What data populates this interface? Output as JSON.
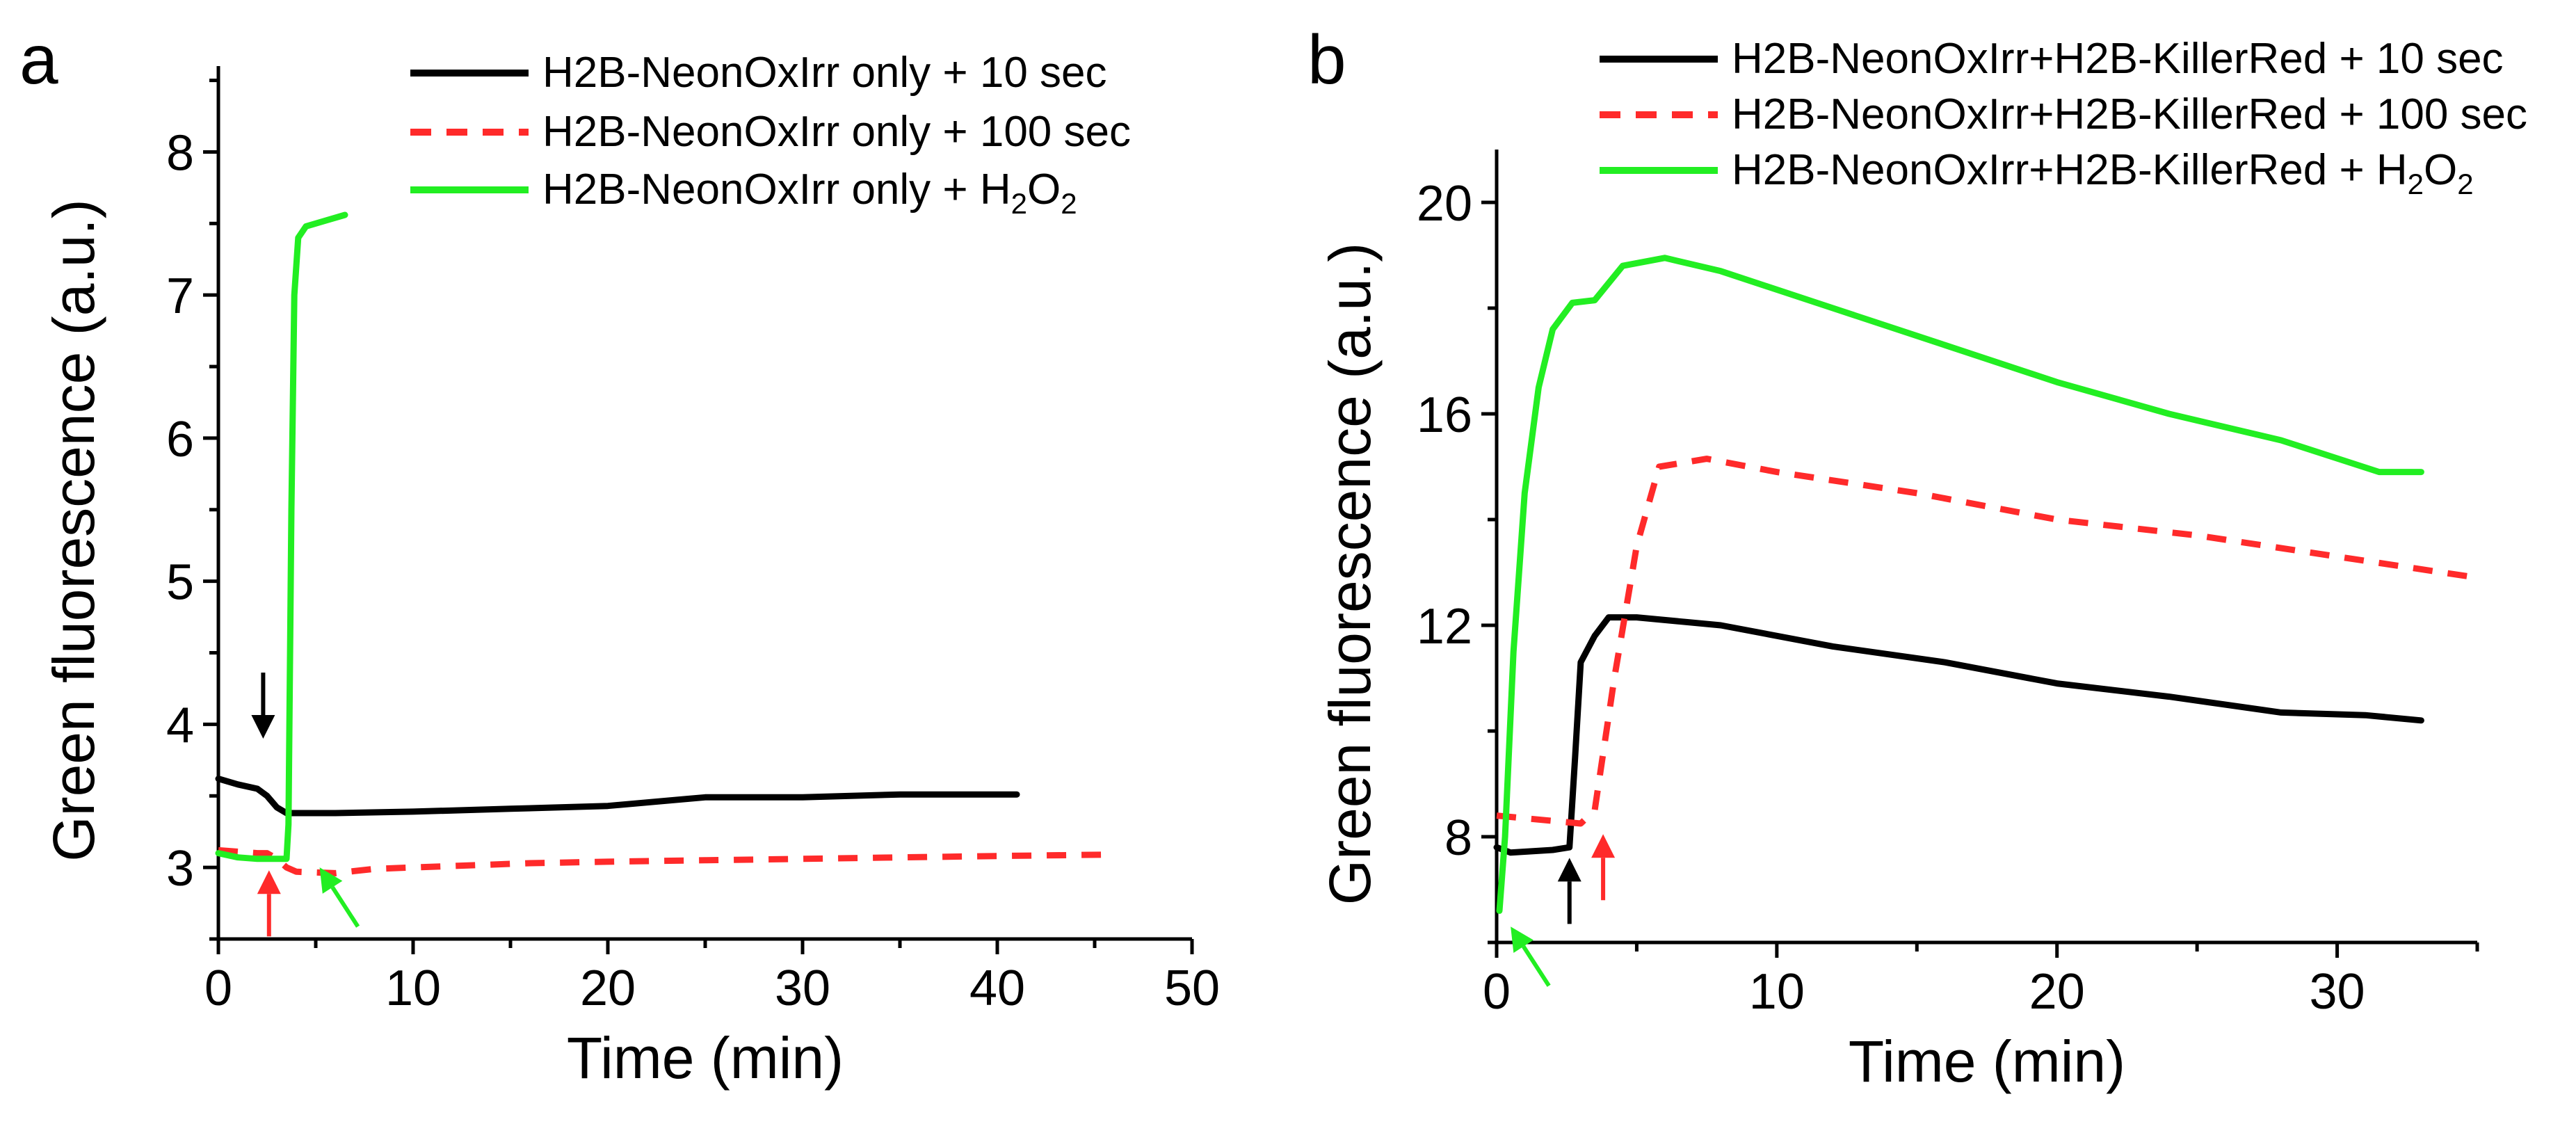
{
  "chart_data": [
    {
      "panel": "a",
      "type": "line",
      "xlabel": "Time (min)",
      "ylabel": "Green fluorescence (a.u.)",
      "xlim": [
        0,
        50
      ],
      "ylim": [
        2.5,
        8.6
      ],
      "xticks": [
        0,
        10,
        20,
        30,
        40,
        50
      ],
      "yticks": [
        3,
        4,
        5,
        6,
        7,
        8
      ],
      "legend_position": "top-right",
      "series": [
        {
          "name": "H2B-NeonOxIrr only + 10 sec",
          "color": "#000000",
          "dash": "solid",
          "points": [
            [
              0,
              3.62
            ],
            [
              1,
              3.58
            ],
            [
              2,
              3.55
            ],
            [
              2.5,
              3.5
            ],
            [
              3,
              3.42
            ],
            [
              3.5,
              3.38
            ],
            [
              4,
              3.38
            ],
            [
              6,
              3.38
            ],
            [
              10,
              3.39
            ],
            [
              15,
              3.41
            ],
            [
              20,
              3.43
            ],
            [
              25,
              3.49
            ],
            [
              30,
              3.49
            ],
            [
              35,
              3.51
            ],
            [
              41,
              3.51
            ]
          ]
        },
        {
          "name": "H2B-NeonOxIrr only + 100 sec",
          "color": "#ff2a2a",
          "dash": "dashed",
          "points": [
            [
              0,
              3.12
            ],
            [
              2,
              3.1
            ],
            [
              2.5,
              3.1
            ],
            [
              3,
              3.06
            ],
            [
              3.5,
              3.0
            ],
            [
              4,
              2.97
            ],
            [
              6,
              2.96
            ],
            [
              8,
              2.99
            ],
            [
              12,
              3.01
            ],
            [
              16,
              3.03
            ],
            [
              20,
              3.04
            ],
            [
              25,
              3.05
            ],
            [
              30,
              3.06
            ],
            [
              35,
              3.07
            ],
            [
              40,
              3.08
            ],
            [
              46,
              3.09
            ]
          ]
        },
        {
          "name": "H2B-NeonOxIrr only + H₂O₂",
          "color": "#22ee22",
          "dash": "solid",
          "points": [
            [
              0,
              3.1
            ],
            [
              1,
              3.07
            ],
            [
              2,
              3.06
            ],
            [
              3,
              3.06
            ],
            [
              3.5,
              3.06
            ],
            [
              3.6,
              3.3
            ],
            [
              3.75,
              5.5
            ],
            [
              3.9,
              7.0
            ],
            [
              4.1,
              7.4
            ],
            [
              4.5,
              7.48
            ],
            [
              5.5,
              7.52
            ],
            [
              6.5,
              7.56
            ]
          ]
        }
      ],
      "legend_part1": [
        "H2B-NeonOxIrr only + 10 sec",
        "H2B-NeonOxIrr only + 100 sec",
        "H2B-NeonOxIrr only + H"
      ],
      "legend_h2o2_tail": [
        "2",
        "O",
        "2"
      ],
      "arrows": [
        {
          "color": "#000000",
          "x": 2.3,
          "tip_y": 3.9,
          "direction": "down"
        },
        {
          "color": "#ff2a2a",
          "x": 2.6,
          "tip_y": 2.98,
          "direction": "up"
        },
        {
          "color": "#22ee22",
          "x": 5.2,
          "tip_y": 3.0,
          "direction": "up-left"
        }
      ]
    },
    {
      "panel": "b",
      "type": "line",
      "xlabel": "Time (min)",
      "ylabel": "Green fluorescence (a.u.)",
      "xlim": [
        0,
        35
      ],
      "ylim": [
        6,
        21
      ],
      "xticks": [
        0,
        10,
        20,
        30
      ],
      "yticks": [
        8,
        12,
        16,
        20
      ],
      "legend_position": "top-right",
      "series": [
        {
          "name": "H2B-NeonOxIrr+H2B-KillerRed + 10 sec",
          "color": "#000000",
          "dash": "solid",
          "points": [
            [
              0,
              7.8
            ],
            [
              0.5,
              7.7
            ],
            [
              2,
              7.75
            ],
            [
              2.6,
              7.8
            ],
            [
              2.8,
              9.5
            ],
            [
              3,
              11.3
            ],
            [
              3.5,
              11.8
            ],
            [
              4,
              12.15
            ],
            [
              5,
              12.15
            ],
            [
              8,
              12.0
            ],
            [
              12,
              11.6
            ],
            [
              16,
              11.3
            ],
            [
              20,
              10.9
            ],
            [
              24,
              10.65
            ],
            [
              28,
              10.35
            ],
            [
              31,
              10.3
            ],
            [
              33,
              10.2
            ]
          ]
        },
        {
          "name": "H2B-NeonOxIrr+H2B-KillerRed + 100 sec",
          "color": "#ff2a2a",
          "dash": "dashed",
          "points": [
            [
              0,
              8.4
            ],
            [
              2,
              8.3
            ],
            [
              3,
              8.25
            ],
            [
              3.5,
              8.5
            ],
            [
              4.2,
              11
            ],
            [
              5,
              13.5
            ],
            [
              5.8,
              15.0
            ],
            [
              7.5,
              15.15
            ],
            [
              10,
              14.9
            ],
            [
              15,
              14.5
            ],
            [
              20,
              14.0
            ],
            [
              25,
              13.7
            ],
            [
              30,
              13.3
            ],
            [
              35,
              12.9
            ]
          ]
        },
        {
          "name": "H2B-NeonOxIrr+H2B-KillerRed + H₂O₂",
          "color": "#22ee22",
          "dash": "solid",
          "points": [
            [
              0.1,
              6.6
            ],
            [
              0.3,
              8.0
            ],
            [
              0.6,
              11.5
            ],
            [
              1,
              14.5
            ],
            [
              1.5,
              16.5
            ],
            [
              2,
              17.6
            ],
            [
              2.7,
              18.1
            ],
            [
              3.5,
              18.15
            ],
            [
              4.5,
              18.8
            ],
            [
              6,
              18.95
            ],
            [
              8,
              18.7
            ],
            [
              12,
              18.0
            ],
            [
              16,
              17.3
            ],
            [
              20,
              16.6
            ],
            [
              24,
              16.0
            ],
            [
              28,
              15.5
            ],
            [
              31.5,
              14.9
            ],
            [
              33,
              14.9
            ]
          ]
        }
      ],
      "legend_part1": [
        "H2B-NeonOxIrr+H2B-KillerRed + 10 sec",
        "H2B-NeonOxIrr+H2B-KillerRed + 100 sec",
        "H2B-NeonOxIrr+H2B-KillerRed + H"
      ],
      "legend_h2o2_tail": [
        "2",
        "O",
        "2"
      ],
      "arrows": [
        {
          "color": "#000000",
          "x": 2.6,
          "tip_y": 7.6,
          "direction": "up"
        },
        {
          "color": "#ff2a2a",
          "x": 3.8,
          "tip_y": 8.05,
          "direction": "up"
        },
        {
          "color": "#22ee22",
          "x": 0.5,
          "tip_y": 6.3,
          "direction": "up-left"
        }
      ]
    }
  ]
}
